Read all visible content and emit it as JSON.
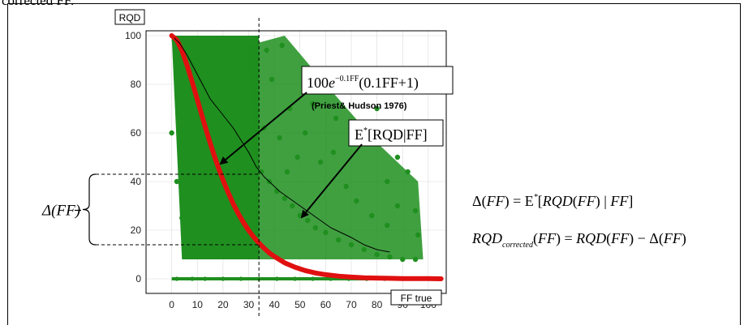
{
  "cut_text": "corrected FF.",
  "chart_data": {
    "type": "scatter",
    "ylabel": "RQD",
    "xlabel": "FF true",
    "xlim": [
      -10,
      107
    ],
    "ylim": [
      -6,
      102
    ],
    "x_ticks": [
      "0",
      "10",
      "20",
      "30",
      "40",
      "50",
      "60",
      "70",
      "80",
      "90",
      "100"
    ],
    "y_ticks": [
      "0",
      "20",
      "40",
      "60",
      "80",
      "100"
    ],
    "grid": true,
    "colors": {
      "scatter": "#1f8f1f",
      "priest_hudson": "#e01010",
      "expectation": "#000000",
      "frame": "#000000"
    },
    "scatter_points": [
      [
        1,
        98
      ],
      [
        3,
        92
      ],
      [
        5,
        95
      ],
      [
        8,
        86
      ],
      [
        11,
        84
      ],
      [
        14,
        78
      ],
      [
        17,
        74
      ],
      [
        20,
        68
      ],
      [
        23,
        64
      ],
      [
        26,
        58
      ],
      [
        29,
        55
      ],
      [
        32,
        50
      ],
      [
        35,
        44
      ],
      [
        38,
        40
      ],
      [
        41,
        36
      ],
      [
        44,
        33
      ],
      [
        47,
        30
      ],
      [
        50,
        26
      ],
      [
        53,
        24
      ],
      [
        56,
        21
      ],
      [
        60,
        19
      ],
      [
        65,
        16
      ],
      [
        70,
        14
      ],
      [
        75,
        12
      ],
      [
        80,
        10
      ],
      [
        85,
        9
      ],
      [
        90,
        8
      ],
      [
        95,
        8
      ],
      [
        0,
        60
      ],
      [
        2,
        40
      ],
      [
        4,
        25
      ],
      [
        6,
        50
      ],
      [
        10,
        10
      ],
      [
        15,
        30
      ],
      [
        19,
        20
      ],
      [
        25,
        42
      ],
      [
        30,
        30
      ],
      [
        36,
        62
      ],
      [
        42,
        58
      ],
      [
        46,
        70
      ],
      [
        52,
        60
      ],
      [
        58,
        48
      ],
      [
        63,
        52
      ],
      [
        68,
        38
      ],
      [
        72,
        32
      ],
      [
        78,
        26
      ],
      [
        84,
        22
      ],
      [
        88,
        30
      ],
      [
        92,
        44
      ],
      [
        96,
        18
      ],
      [
        61,
        78
      ],
      [
        57,
        85
      ],
      [
        43,
        96
      ],
      [
        37,
        94
      ],
      [
        74,
        64
      ],
      [
        64,
        66
      ],
      [
        84,
        40
      ],
      [
        88,
        50
      ],
      [
        80,
        70
      ],
      [
        76,
        56
      ],
      [
        95,
        28
      ],
      [
        33,
        98
      ],
      [
        28,
        92
      ],
      [
        39,
        82
      ],
      [
        24,
        78
      ],
      [
        55,
        72
      ],
      [
        49,
        50
      ],
      [
        45,
        44
      ]
    ],
    "floor_points_y": 0,
    "floor_points_x": [
      2,
      8,
      13,
      20,
      27,
      34,
      41,
      48,
      55,
      62,
      69,
      76,
      83,
      90,
      97
    ],
    "series": [
      {
        "name": "100e^{-0.1FF}(0.1FF+1)",
        "source": "(Priest& Hudson 1976)"
      },
      {
        "name": "E*[RQD|FF]"
      }
    ],
    "priest_hudson_x": [
      0,
      2,
      4,
      6,
      8,
      10,
      12,
      14,
      16,
      18,
      20,
      22,
      24,
      26,
      28,
      30,
      32,
      34,
      36,
      38,
      40,
      44,
      48,
      52,
      56,
      60,
      65,
      70,
      75,
      80,
      85,
      90,
      95,
      100,
      105
    ],
    "priest_hudson_y": [
      100,
      98.2,
      93.8,
      87.8,
      80.9,
      73.6,
      66.3,
      59.2,
      52.5,
      46.3,
      40.6,
      35.5,
      30.8,
      26.7,
      23.1,
      19.9,
      17.1,
      14.7,
      12.6,
      10.7,
      9.2,
      6.6,
      4.8,
      3.4,
      2.4,
      1.7,
      1.1,
      0.7,
      0.4,
      0.3,
      0.2,
      0.1,
      0.1,
      0.1,
      0.0
    ],
    "expectation_x": [
      1,
      3,
      6,
      9,
      12,
      15,
      18,
      21,
      24,
      27,
      30,
      33,
      36,
      39,
      42,
      46,
      50,
      54,
      58,
      62,
      66,
      70,
      75,
      80,
      85
    ],
    "expectation_y": [
      99,
      97,
      92,
      86,
      80,
      74,
      70,
      66,
      62,
      57,
      52,
      46,
      42,
      39,
      36,
      33,
      30,
      27,
      24,
      21,
      19,
      17,
      14,
      12,
      11
    ],
    "delta_label": "Δ(FF)",
    "delta_range": [
      14,
      43
    ],
    "ff_marker": 34,
    "equations": [
      "Δ(FF) = E*[RQD(FF) | FF]",
      "RQD_corrected(FF) = RQD(FF) − Δ(FF)"
    ]
  }
}
